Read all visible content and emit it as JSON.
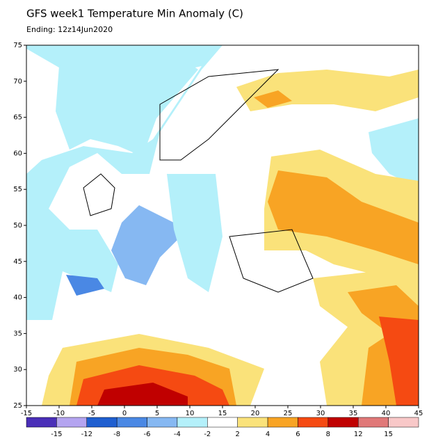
{
  "title": "GFS week1 Temperature Min Anomaly (C)",
  "subtitle": "Ending: 12z14Jun2020",
  "map": {
    "lonlim": [
      -15,
      45
    ],
    "latlim": [
      25,
      75
    ],
    "lon_ticks": [
      -15,
      -10,
      -5,
      0,
      5,
      10,
      15,
      20,
      25,
      30,
      35,
      40,
      45
    ],
    "lat_ticks": [
      25,
      30,
      35,
      40,
      45,
      50,
      55,
      60,
      65,
      70,
      75
    ]
  },
  "legend": {
    "levels": [
      -15,
      -12,
      -8,
      -6,
      -4,
      -2,
      2,
      4,
      6,
      8,
      12,
      15
    ],
    "colors": [
      "#4a2fb8",
      "#b4a4f0",
      "#1f5fd0",
      "#4a88e4",
      "#86b8f2",
      "#b4f0fa",
      "#ffffff",
      "#fae27a",
      "#f8a424",
      "#f54a12",
      "#c00000",
      "#e07878",
      "#f8c8c8"
    ]
  }
}
